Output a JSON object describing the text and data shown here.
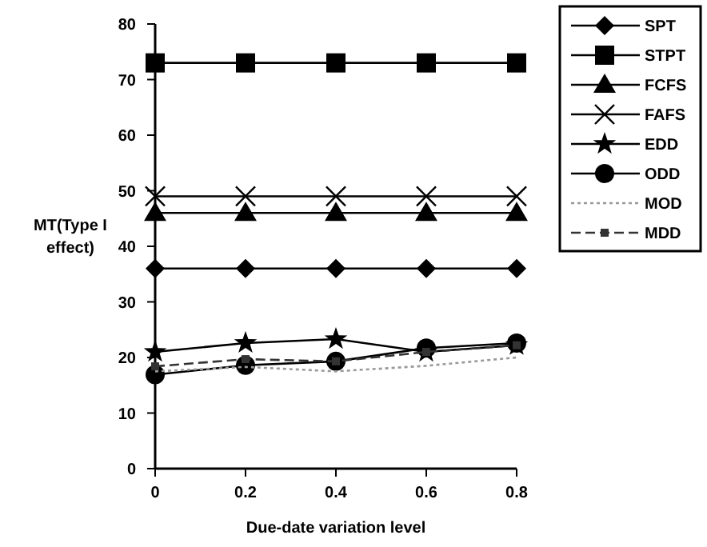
{
  "chart_data": {
    "type": "line",
    "xlabel": "Due-date variation level",
    "ylabel": "MT(Type I effect)",
    "x": [
      0,
      0.2,
      0.4,
      0.6,
      0.8
    ],
    "xlim": [
      0,
      0.8
    ],
    "xticks": [
      0,
      0.2,
      0.4,
      0.6,
      0.8
    ],
    "ylim": [
      0,
      80
    ],
    "yticks": [
      0,
      10,
      20,
      30,
      40,
      50,
      60,
      70,
      80
    ],
    "grid": false,
    "legend": "right",
    "series": [
      {
        "name": "SPT",
        "color": "#000000",
        "marker": "diamond",
        "line_style": "solid",
        "values": [
          36,
          36,
          36,
          36,
          36
        ]
      },
      {
        "name": "STPT",
        "color": "#000000",
        "marker": "square",
        "line_style": "solid",
        "values": [
          73,
          73,
          73,
          73,
          73
        ]
      },
      {
        "name": "FCFS",
        "color": "#000000",
        "marker": "triangle",
        "line_style": "solid",
        "values": [
          46,
          46,
          46,
          46,
          46
        ]
      },
      {
        "name": "FAFS",
        "color": "#000000",
        "marker": "cross",
        "line_style": "solid",
        "values": [
          49,
          49,
          49,
          49,
          49
        ]
      },
      {
        "name": "EDD",
        "color": "#000000",
        "marker": "star",
        "line_style": "solid",
        "values": [
          21,
          22.6,
          23.3,
          21,
          22.2
        ]
      },
      {
        "name": "ODD",
        "color": "#000000",
        "marker": "circle",
        "line_style": "solid",
        "values": [
          16.9,
          18.6,
          19.3,
          21.7,
          22.6
        ]
      },
      {
        "name": "MOD",
        "color": "#999999",
        "marker": "none",
        "line_style": "dotted",
        "values": [
          17.5,
          18.3,
          17.5,
          18.5,
          20
        ]
      },
      {
        "name": "MDD",
        "color": "#333333",
        "marker": "square",
        "line_style": "dashed",
        "values": [
          18.4,
          19.7,
          19.3,
          21,
          22.2
        ]
      }
    ]
  }
}
